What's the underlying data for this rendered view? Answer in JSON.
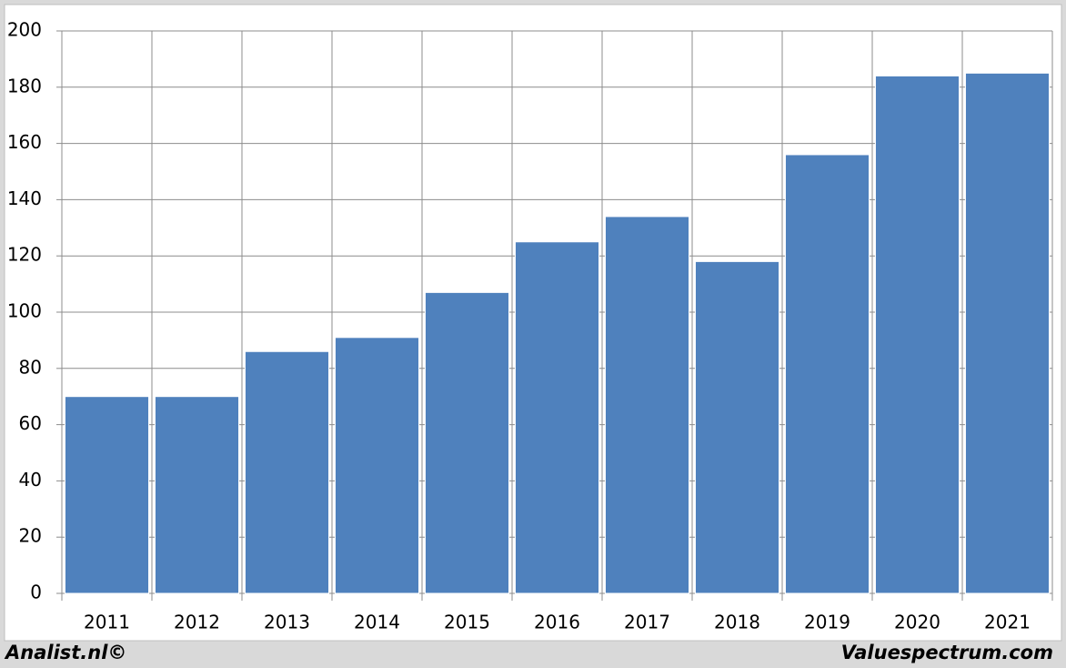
{
  "chart_data": {
    "type": "bar",
    "categories": [
      "2011",
      "2012",
      "2013",
      "2014",
      "2015",
      "2016",
      "2017",
      "2018",
      "2019",
      "2020",
      "2021"
    ],
    "values": [
      70,
      70,
      86,
      91,
      107,
      125,
      134,
      118,
      156,
      184,
      185
    ],
    "color": "#4f81bd",
    "ylim": [
      0,
      200
    ],
    "yticks": [
      0,
      20,
      40,
      60,
      80,
      100,
      120,
      140,
      160,
      180,
      200
    ],
    "grid": true
  },
  "footer": {
    "left": "Analist.nl©",
    "right": "Valuespectrum.com"
  }
}
